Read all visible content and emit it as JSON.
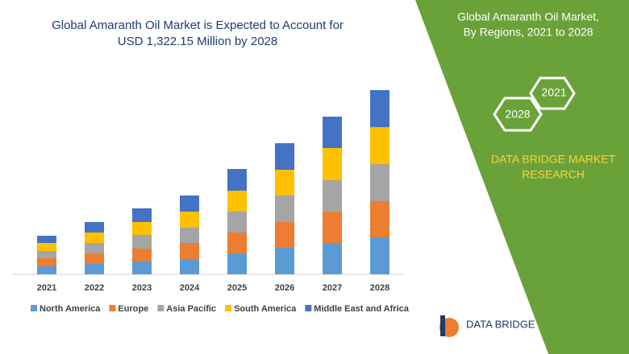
{
  "chart_data": {
    "type": "bar",
    "stacked": true,
    "title": [
      "Global Amaranth Oil Market is Expected to Account for",
      "USD 1,322.15 Million by 2028"
    ],
    "categories": [
      "2021",
      "2022",
      "2023",
      "2024",
      "2025",
      "2026",
      "2027",
      "2028"
    ],
    "series": [
      {
        "name": "North America",
        "color": "#5b9bd5",
        "values": [
          10,
          13,
          16,
          19,
          26,
          33,
          39,
          46
        ]
      },
      {
        "name": "Europe",
        "color": "#ed7d31",
        "values": [
          10,
          13,
          16,
          20,
          26,
          32,
          39,
          45
        ]
      },
      {
        "name": "Asia Pacific",
        "color": "#a5a5a5",
        "values": [
          9,
          13,
          17,
          19,
          26,
          33,
          39,
          46
        ]
      },
      {
        "name": "South America",
        "color": "#ffc000",
        "values": [
          10,
          13,
          16,
          20,
          26,
          32,
          40,
          46
        ]
      },
      {
        "name": "Middle East and Africa",
        "color": "#4472c4",
        "values": [
          9,
          13,
          17,
          20,
          27,
          33,
          39,
          46
        ]
      }
    ],
    "legend": "bottom"
  },
  "side_panel": {
    "title": [
      "Global Amaranth Oil Market,",
      "By Regions, 2021 to 2028"
    ],
    "hexagons": [
      "2021",
      "2028"
    ],
    "brand": [
      "DATA BRIDGE MARKET",
      "RESEARCH"
    ]
  },
  "logo": {
    "text": "DATA BRIDGE"
  }
}
